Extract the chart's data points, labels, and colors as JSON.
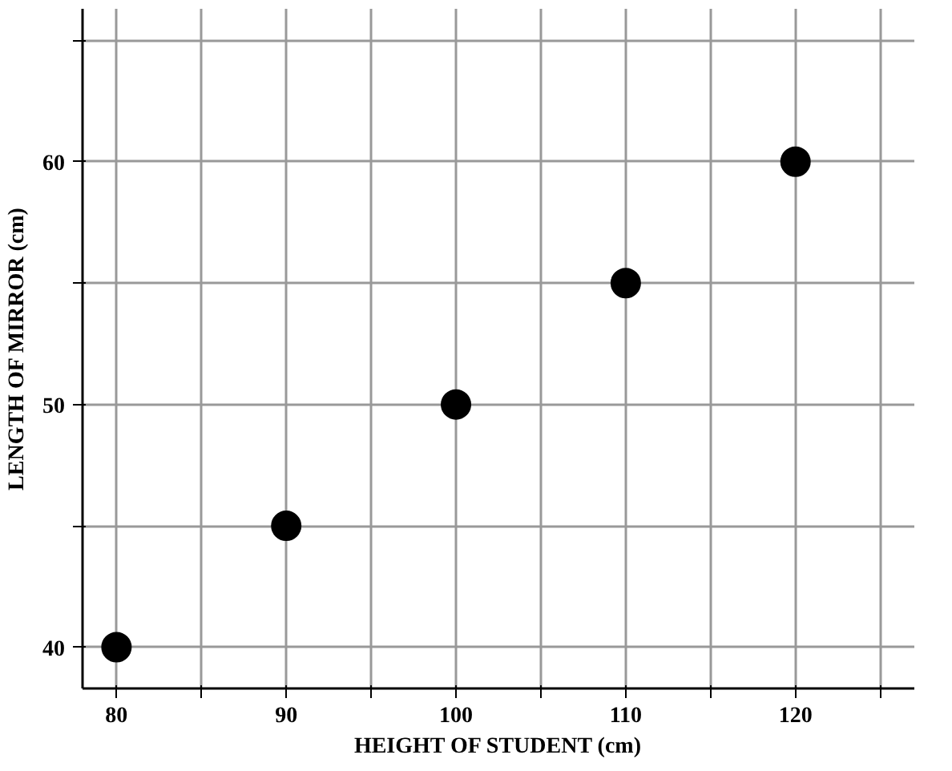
{
  "chart_data": {
    "type": "scatter",
    "xlabel": "HEIGHT OF STUDENT (cm)",
    "ylabel": "LENGTH OF MIRROR (cm)",
    "x": [
      80,
      90,
      100,
      110,
      120
    ],
    "series": [
      {
        "color": "#000000",
        "values": [
          40,
          45,
          50,
          55,
          60
        ]
      }
    ],
    "xlim": [
      78,
      127
    ],
    "ylim": [
      38.3,
      66.3
    ],
    "xticks": [
      80,
      {
        "value": 85,
        "label": null
      },
      90,
      {
        "value": 95,
        "label": null
      },
      100,
      {
        "value": 105,
        "label": null
      },
      110,
      {
        "value": 115,
        "label": null
      },
      120,
      {
        "value": 125,
        "label": null
      }
    ],
    "yticks": [
      40,
      {
        "value": 45,
        "label": null
      },
      50,
      {
        "value": 55,
        "label": null
      },
      60,
      {
        "value": 65,
        "label": null
      }
    ],
    "grid": true,
    "marker": "circle"
  }
}
